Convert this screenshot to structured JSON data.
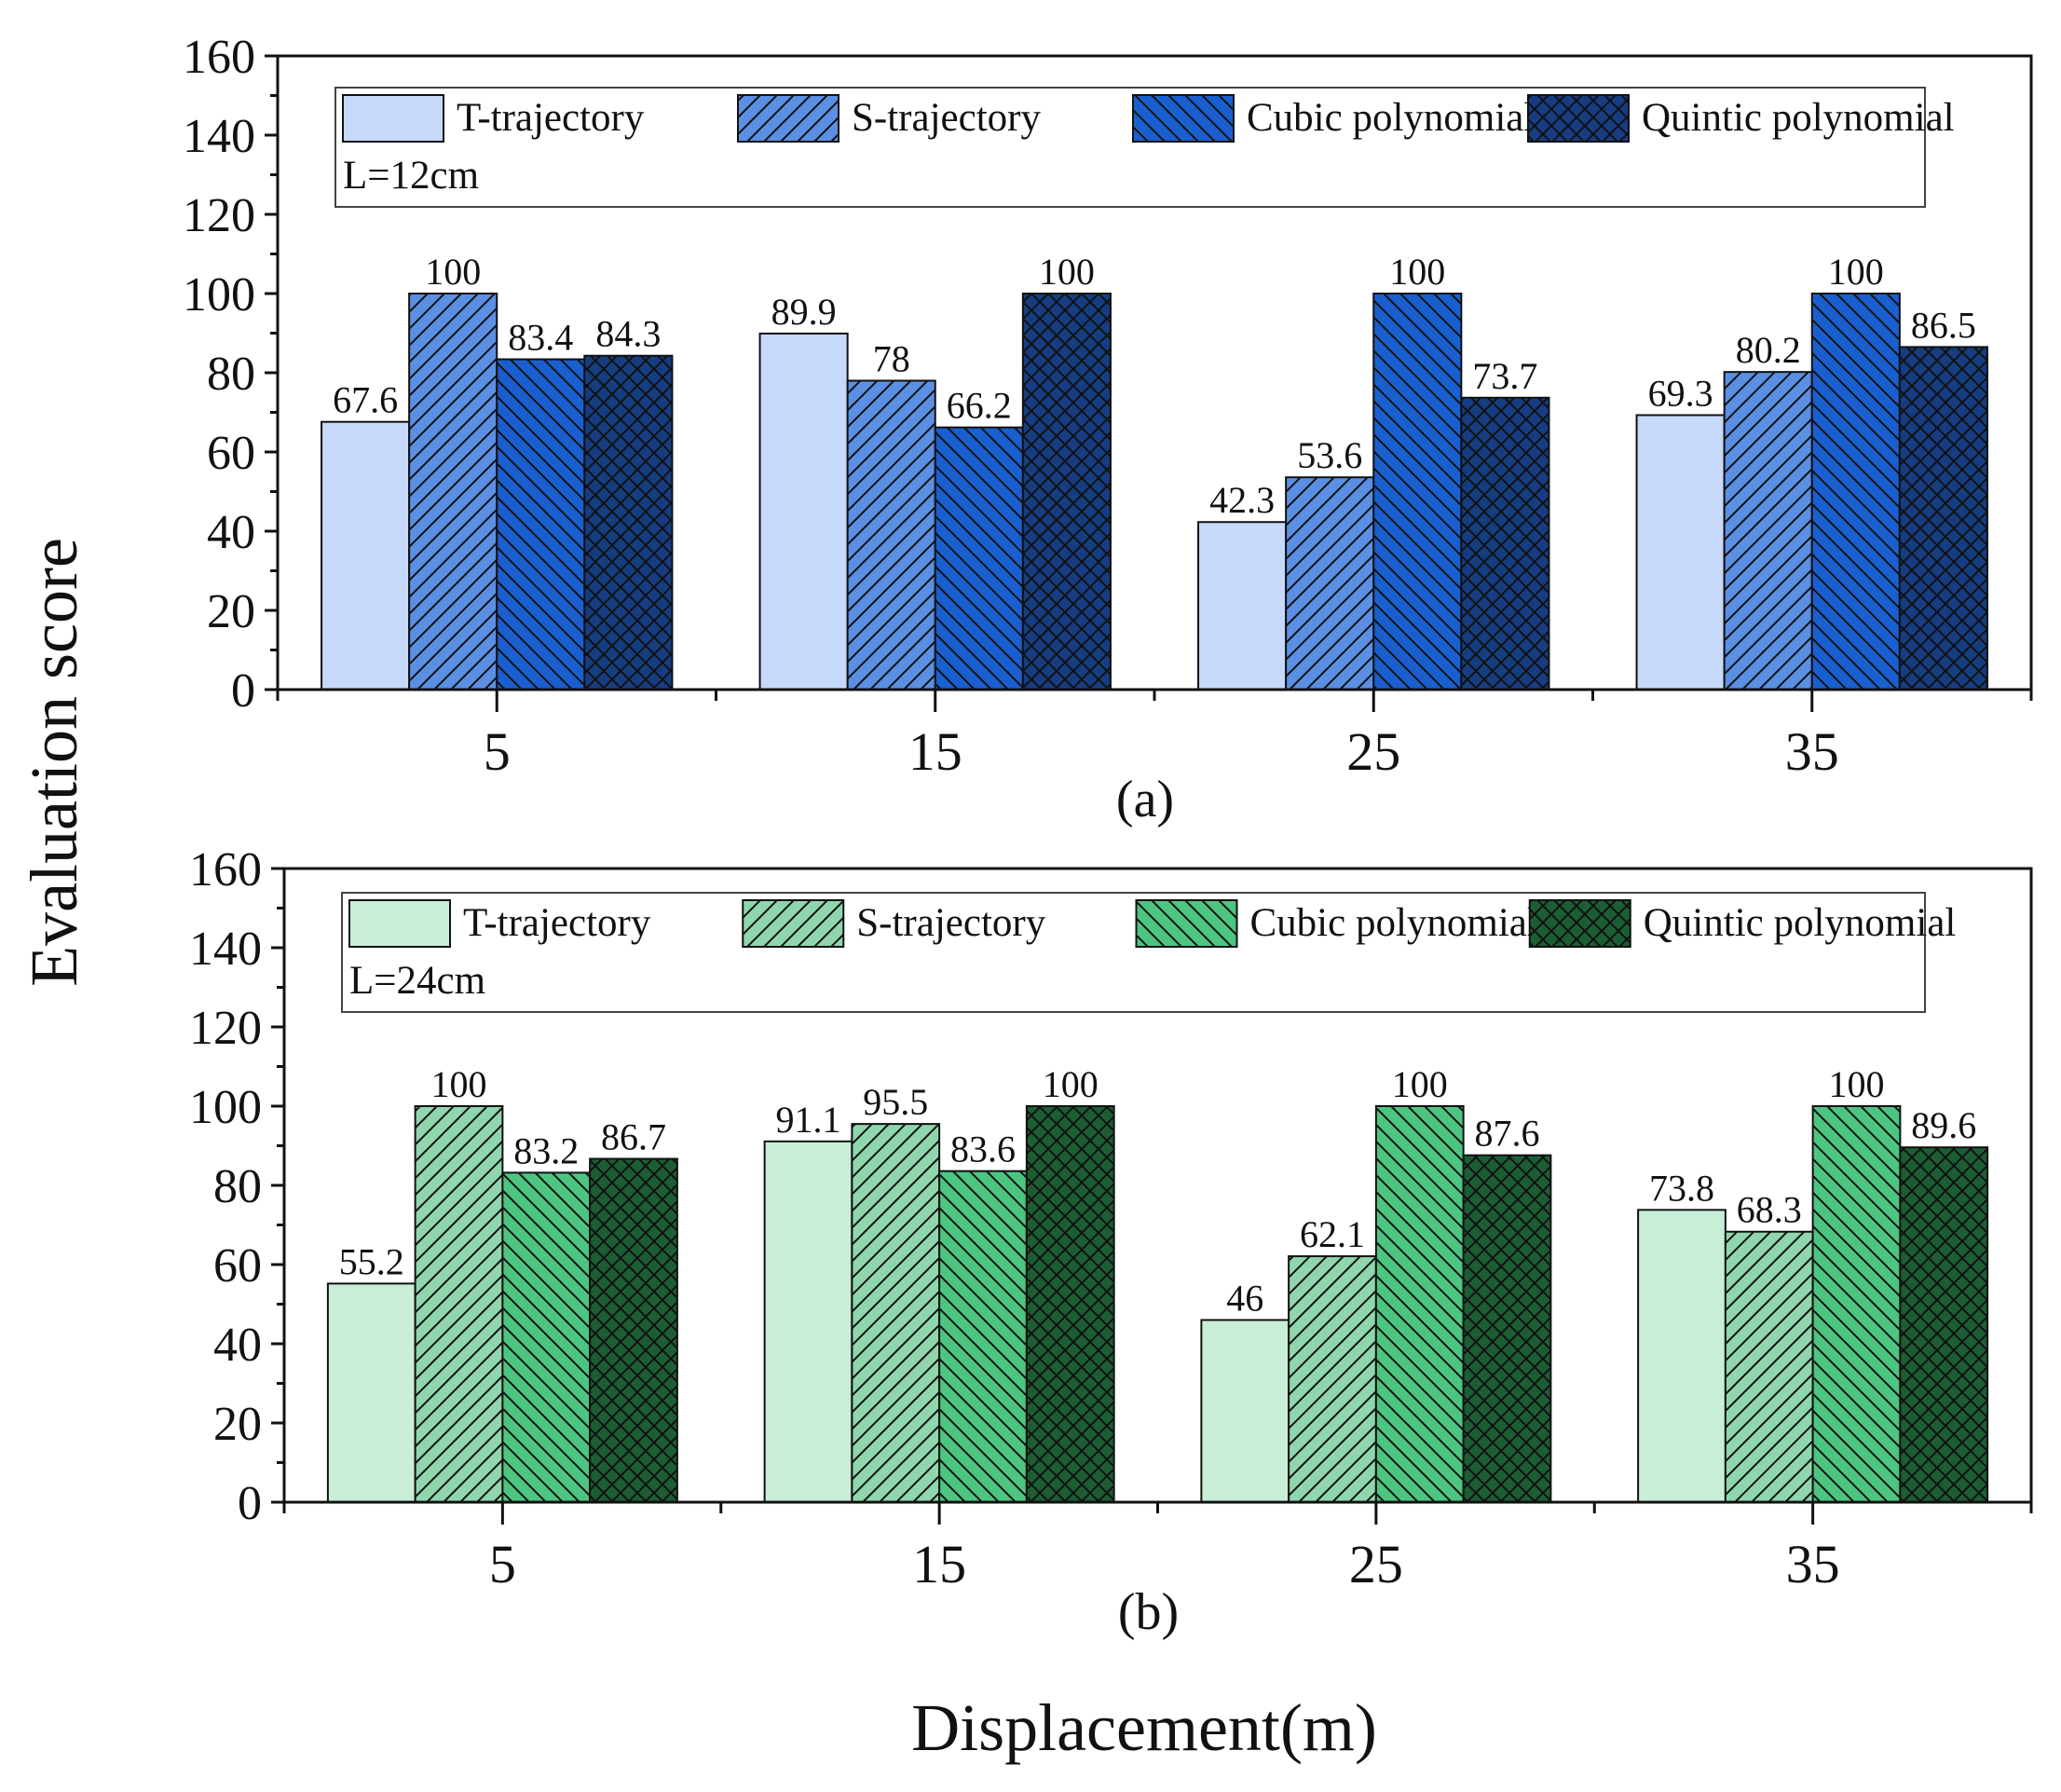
{
  "figure": {
    "y_axis_label": "Evaluation score",
    "x_axis_label": "Displacement(m)"
  },
  "chart_data": [
    {
      "type": "bar",
      "panel_label": "(a)",
      "annotation": "L=12cm",
      "categories": [
        "5",
        "15",
        "25",
        "35"
      ],
      "ylim": [
        0,
        160
      ],
      "yticks": [
        "0",
        "20",
        "40",
        "60",
        "80",
        "100",
        "120",
        "140",
        "160"
      ],
      "grid": false,
      "legend_position": "top",
      "series": [
        {
          "name": "T-trajectory",
          "values": [
            67.6,
            89.9,
            42.3,
            69.3
          ],
          "labels": [
            "67.6",
            "89.9",
            "42.3",
            "69.3"
          ],
          "color": "#c6d9fb",
          "pattern": "none"
        },
        {
          "name": "S-trajectory",
          "values": [
            100,
            78,
            53.6,
            80.2
          ],
          "labels": [
            "100",
            "78",
            "53.6",
            "80.2"
          ],
          "color": "#5b8fe3",
          "pattern": "diagonal"
        },
        {
          "name": "Cubic polynomial",
          "values": [
            83.4,
            66.2,
            100,
            100
          ],
          "labels": [
            "83.4",
            "66.2",
            "100",
            "100"
          ],
          "color": "#1a5fcf",
          "pattern": "back-diagonal"
        },
        {
          "name": "Quintic polynomial",
          "values": [
            84.3,
            100,
            73.7,
            86.5
          ],
          "labels": [
            "84.3",
            "100",
            "73.7",
            "86.5"
          ],
          "color": "#163d82",
          "pattern": "crosshatch"
        }
      ]
    },
    {
      "type": "bar",
      "panel_label": "(b)",
      "annotation": "L=24cm",
      "categories": [
        "5",
        "15",
        "25",
        "35"
      ],
      "ylim": [
        0,
        160
      ],
      "yticks": [
        "0",
        "20",
        "40",
        "60",
        "80",
        "100",
        "120",
        "140",
        "160"
      ],
      "grid": false,
      "legend_position": "top",
      "series": [
        {
          "name": "T-trajectory",
          "values": [
            55.2,
            91.1,
            46,
            73.8
          ],
          "labels": [
            "55.2",
            "91.1",
            "46",
            "73.8"
          ],
          "color": "#c8eed8",
          "pattern": "none"
        },
        {
          "name": "S-trajectory",
          "values": [
            100,
            95.5,
            62.1,
            68.3
          ],
          "labels": [
            "100",
            "95.5",
            "62.1",
            "68.3"
          ],
          "color": "#8fd6ad",
          "pattern": "diagonal"
        },
        {
          "name": "Cubic polynomial",
          "values": [
            83.2,
            83.6,
            100,
            100
          ],
          "labels": [
            "83.2",
            "83.6",
            "100",
            "100"
          ],
          "color": "#4cc581",
          "pattern": "back-diagonal"
        },
        {
          "name": "Quintic polynomial",
          "values": [
            86.7,
            100,
            87.6,
            89.6
          ],
          "labels": [
            "86.7",
            "100",
            "87.6",
            "89.6"
          ],
          "color": "#1c5e34",
          "pattern": "crosshatch"
        }
      ]
    }
  ]
}
